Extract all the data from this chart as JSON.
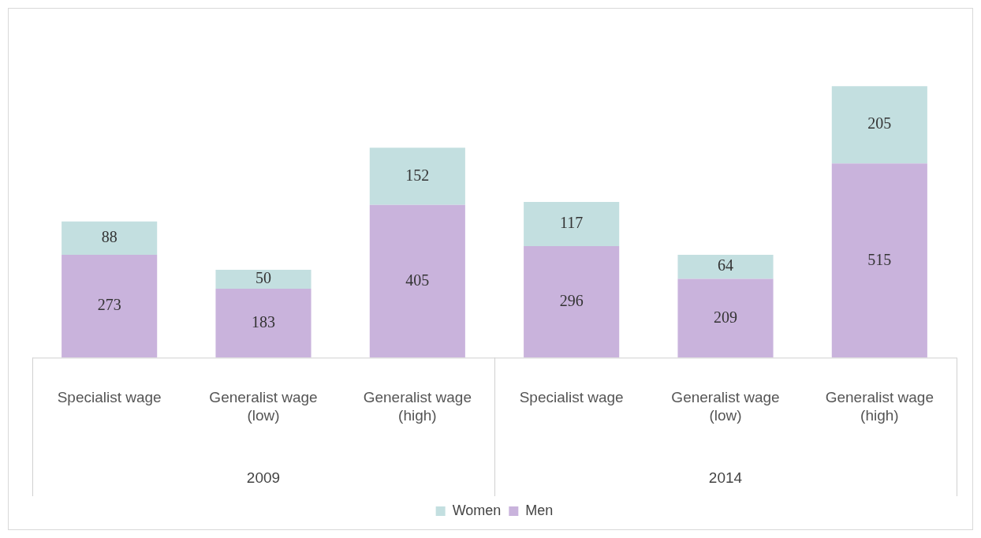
{
  "chart_data": {
    "type": "bar",
    "stacked": true,
    "data_labels": true,
    "legend": "bottom",
    "grid": false,
    "categories": [
      "Specialist wage",
      "Generalist wage (low)",
      "Generalist wage (high)",
      "Specialist wage",
      "Generalist wage (low)",
      "Generalist wage (high)"
    ],
    "annotations": [
      "2009",
      "2014"
    ],
    "series": [
      {
        "name": "Men",
        "color": "#c9b3dc",
        "values": [
          273,
          183,
          405,
          296,
          209,
          515
        ]
      },
      {
        "name": "Women",
        "color": "#c3dfe0",
        "values": [
          88,
          50,
          152,
          117,
          64,
          205
        ]
      }
    ]
  }
}
